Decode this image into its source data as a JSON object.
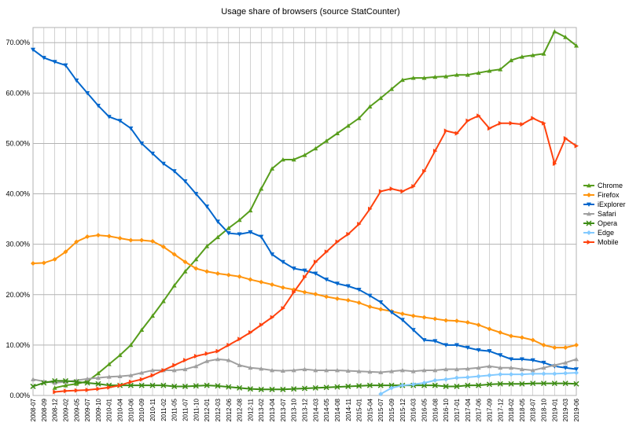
{
  "chart_data": {
    "type": "line",
    "title": "Usage share of browsers (source StatCounter)",
    "categories": [
      "2008-07",
      "2008-09",
      "2008-12",
      "2009-02",
      "2009-05",
      "2009-07",
      "2009-10",
      "2010-01",
      "2010-04",
      "2010-06",
      "2010-09",
      "2010-11",
      "2011-02",
      "2011-05",
      "2011-07",
      "2011-10",
      "2012-01",
      "2012-03",
      "2012-06",
      "2012-08",
      "2012-11",
      "2013-02",
      "2013-04",
      "2013-07",
      "2013-10",
      "2013-12",
      "2014-03",
      "2014-05",
      "2014-08",
      "2014-11",
      "2015-01",
      "2015-04",
      "2015-07",
      "2015-09",
      "2015-12",
      "2016-03",
      "2016-05",
      "2016-08",
      "2016-10",
      "2017-01",
      "2017-04",
      "2017-06",
      "2017-09",
      "2017-12",
      "2018-02",
      "2018-05",
      "2018-07",
      "2018-10",
      "2019-01",
      "2019-03",
      "2019-06"
    ],
    "ylim": [
      0,
      73
    ],
    "yticks": [
      {
        "value": 0,
        "label": "0.00%"
      },
      {
        "value": 10,
        "label": "10.00%"
      },
      {
        "value": 20,
        "label": "20.00%"
      },
      {
        "value": 30,
        "label": "30.00%"
      },
      {
        "value": 40,
        "label": "40.00%"
      },
      {
        "value": 50,
        "label": "50.00%"
      },
      {
        "value": 60,
        "label": "60.00%"
      },
      {
        "value": 70,
        "label": "70.00%"
      }
    ],
    "grid": true,
    "legend": "right",
    "series": [
      {
        "name": "Chrome",
        "color": "#579d1c",
        "marker": "triangle",
        "values": [
          null,
          null,
          1.5,
          2.0,
          2.3,
          2.8,
          4.4,
          6.2,
          8.0,
          10.0,
          13.0,
          15.8,
          18.7,
          21.8,
          24.6,
          27.0,
          29.6,
          31.4,
          33.2,
          34.8,
          36.7,
          41.0,
          45.0,
          46.8,
          46.8,
          47.7,
          49.0,
          50.5,
          52.0,
          53.5,
          55.0,
          57.3,
          59.0,
          60.8,
          62.6,
          63.0,
          63.0,
          63.2,
          63.3,
          63.6,
          63.6,
          64.0,
          64.4,
          64.7,
          66.5,
          67.2,
          67.5,
          67.8,
          72.2,
          71.1,
          69.4
        ]
      },
      {
        "name": "Firefox",
        "color": "#ff950e",
        "marker": "diamond",
        "values": [
          26.2,
          26.3,
          27.0,
          28.5,
          30.5,
          31.5,
          31.8,
          31.6,
          31.2,
          30.8,
          30.8,
          30.6,
          29.5,
          28.0,
          26.5,
          25.2,
          24.6,
          24.2,
          23.9,
          23.6,
          23.0,
          22.5,
          22.0,
          21.4,
          21.0,
          20.5,
          20.1,
          19.6,
          19.2,
          18.9,
          18.4,
          17.6,
          17.1,
          16.7,
          16.2,
          15.8,
          15.5,
          15.2,
          14.9,
          14.8,
          14.5,
          14.0,
          13.2,
          12.5,
          11.8,
          11.5,
          11.0,
          10.0,
          9.5,
          9.5,
          10.0
        ]
      },
      {
        "name": "iExplorer",
        "color": "#0066cc",
        "marker": "triangle-down",
        "values": [
          68.6,
          67.0,
          66.2,
          65.5,
          62.5,
          60.0,
          57.5,
          55.3,
          54.5,
          53.0,
          50.0,
          48.0,
          46.0,
          44.5,
          42.5,
          40.0,
          37.5,
          34.5,
          32.2,
          32.0,
          32.4,
          31.5,
          28.0,
          26.5,
          25.2,
          24.8,
          24.2,
          23.0,
          22.2,
          21.7,
          21.0,
          19.8,
          18.5,
          16.5,
          15.0,
          13.0,
          11.0,
          10.8,
          10.0,
          10.0,
          9.5,
          9.0,
          8.8,
          8.0,
          7.2,
          7.2,
          7.0,
          6.5,
          5.8,
          5.5,
          5.2
        ]
      },
      {
        "name": "Safari",
        "color": "#a0a0a0",
        "marker": "triangle",
        "values": [
          3.2,
          2.8,
          2.5,
          2.7,
          3.0,
          3.3,
          3.5,
          3.7,
          3.8,
          4.0,
          4.5,
          5.0,
          5.0,
          5.0,
          5.2,
          5.8,
          6.8,
          7.2,
          7.0,
          6.0,
          5.5,
          5.3,
          5.0,
          4.9,
          5.0,
          5.2,
          5.0,
          5.0,
          5.0,
          4.9,
          4.8,
          4.7,
          4.6,
          4.8,
          5.0,
          4.8,
          5.0,
          5.0,
          5.2,
          5.2,
          5.3,
          5.5,
          5.8,
          5.5,
          5.5,
          5.2,
          5.0,
          5.5,
          6.0,
          6.5,
          7.2
        ]
      },
      {
        "name": "Opera",
        "color": "#3d8c14",
        "marker": "x",
        "values": [
          1.8,
          2.5,
          2.9,
          2.9,
          2.7,
          2.5,
          2.3,
          2.0,
          2.0,
          2.0,
          2.0,
          2.0,
          2.0,
          1.8,
          1.8,
          1.9,
          2.0,
          1.9,
          1.7,
          1.5,
          1.3,
          1.2,
          1.2,
          1.2,
          1.3,
          1.4,
          1.5,
          1.6,
          1.7,
          1.8,
          1.9,
          2.0,
          2.0,
          2.0,
          2.0,
          2.0,
          2.0,
          2.0,
          1.8,
          1.8,
          2.0,
          2.0,
          2.2,
          2.3,
          2.3,
          2.3,
          2.4,
          2.4,
          2.4,
          2.4,
          2.3
        ]
      },
      {
        "name": "Edge",
        "color": "#83caff",
        "marker": "diamond",
        "values": [
          null,
          null,
          null,
          null,
          null,
          null,
          null,
          null,
          null,
          null,
          null,
          null,
          null,
          null,
          null,
          null,
          null,
          null,
          null,
          null,
          null,
          null,
          null,
          null,
          null,
          null,
          null,
          null,
          null,
          null,
          null,
          null,
          0.3,
          1.5,
          2.0,
          2.2,
          2.5,
          3.0,
          3.2,
          3.5,
          3.6,
          3.8,
          4.0,
          4.2,
          4.2,
          4.2,
          4.3,
          4.3,
          4.3,
          4.4,
          4.5
        ]
      },
      {
        "name": "Mobile",
        "color": "#ff420e",
        "marker": "triangle-right",
        "values": [
          null,
          null,
          0.7,
          0.9,
          1.0,
          1.1,
          1.3,
          1.6,
          2.0,
          2.7,
          3.2,
          4.0,
          5.0,
          6.0,
          7.0,
          7.8,
          8.3,
          8.8,
          10.0,
          11.2,
          12.5,
          14.0,
          15.5,
          17.3,
          20.5,
          23.5,
          26.5,
          28.5,
          30.5,
          32.0,
          34.0,
          37.0,
          40.5,
          41.0,
          40.5,
          41.5,
          44.5,
          48.5,
          52.5,
          52.0,
          54.5,
          55.5,
          53.0,
          54.0,
          54.0,
          53.8,
          55.0,
          54.0,
          46.0,
          51.0,
          49.5
        ]
      }
    ]
  }
}
